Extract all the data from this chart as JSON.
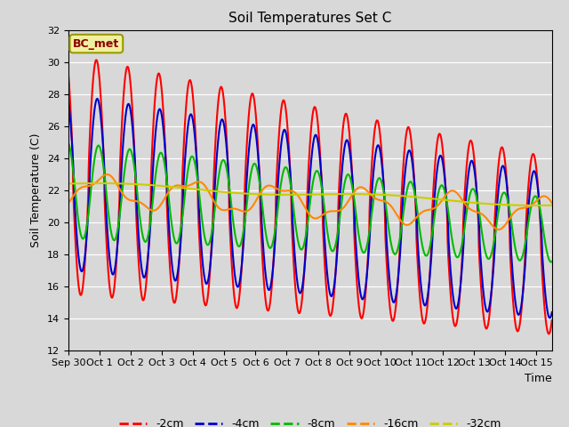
{
  "title": "Soil Temperatures Set C",
  "xlabel": "Time",
  "ylabel": "Soil Temperature (C)",
  "ylim": [
    12,
    32
  ],
  "yticks": [
    12,
    14,
    16,
    18,
    20,
    22,
    24,
    26,
    28,
    30,
    32
  ],
  "xlim": [
    0,
    15.5
  ],
  "figsize": [
    6.4,
    4.8
  ],
  "dpi": 100,
  "background_color": "#d8d8d8",
  "plot_bg_color": "#d8d8d8",
  "annotation_text": "BC_met",
  "annotation_box_facecolor": "#f0f0a0",
  "annotation_text_color": "#8B0000",
  "annotation_border_color": "#999900",
  "series_colors": {
    "-2cm": "#ff0000",
    "-4cm": "#0000cc",
    "-8cm": "#00bb00",
    "-16cm": "#ff8800",
    "-32cm": "#cccc00"
  },
  "xlabels": [
    "Sep 30",
    "Oct 1",
    "Oct 2",
    "Oct 3",
    "Oct 4",
    "Oct 5",
    "Oct 6",
    "Oct 7",
    "Oct 8",
    "Oct 9",
    "Oct 10",
    "Oct 11",
    "Oct 12",
    "Oct 13",
    "Oct 14",
    "Oct 15"
  ],
  "xtick_positions": [
    0,
    1,
    2,
    3,
    4,
    5,
    6,
    7,
    8,
    9,
    10,
    11,
    12,
    13,
    14,
    15
  ]
}
